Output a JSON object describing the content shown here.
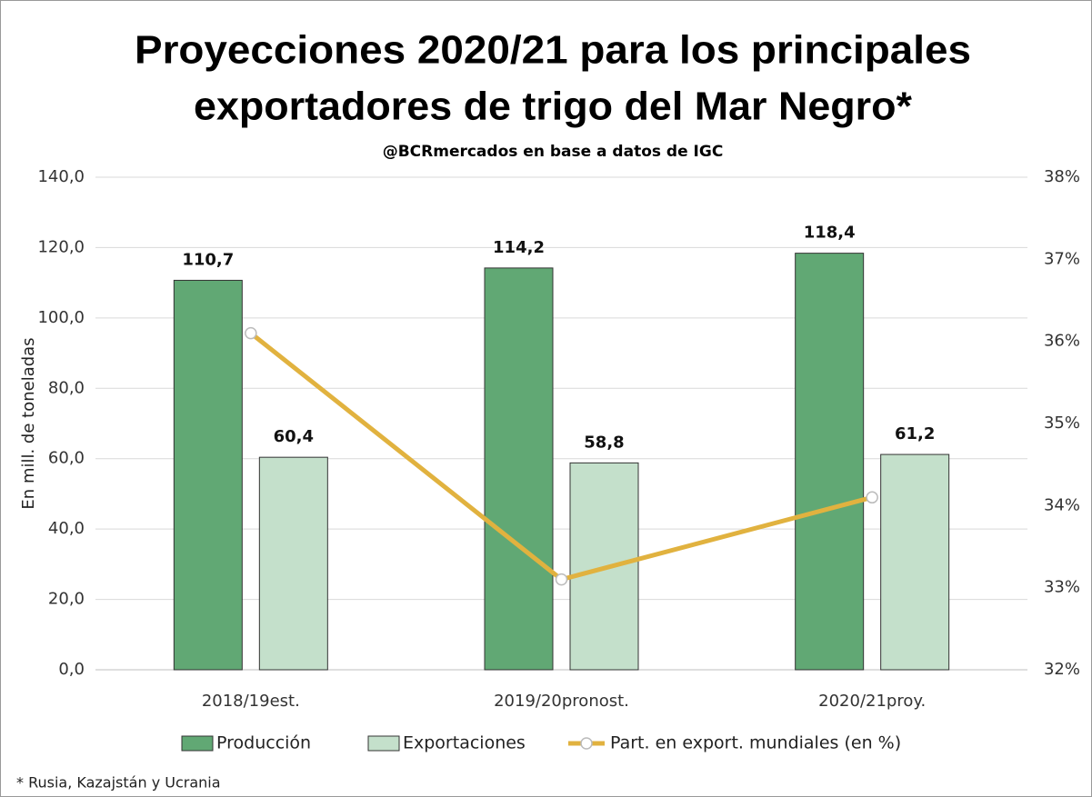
{
  "chart_data": {
    "type": "bar",
    "title": [
      "Proyecciones 2020/21 para los principales",
      "exportadores de trigo del Mar Negro*"
    ],
    "subtitle": "@BCRmercados  en base a datos de IGC",
    "y_label": "En mill. de toneladas",
    "footnote": "* Rusia, Kazajstán y Ucrania",
    "categories": [
      "2018/19est.",
      "2019/20pronost.",
      "2020/21proy."
    ],
    "series": [
      {
        "name": "Producción",
        "type": "bar",
        "color": "#61a874",
        "values": [
          110.7,
          114.2,
          118.4
        ],
        "value_labels": [
          "110,7",
          "114,2",
          "118,4"
        ]
      },
      {
        "name": "Exportaciones",
        "type": "bar",
        "color": "#c4e0cb",
        "values": [
          60.4,
          58.8,
          61.2
        ],
        "value_labels": [
          "60,4",
          "58,8",
          "61,2"
        ]
      },
      {
        "name": "Part. en export. mundiales (en %)",
        "type": "line",
        "axis": "y2",
        "color": "#e1b23f",
        "values": [
          36.1,
          33.1,
          34.1
        ]
      }
    ],
    "ylim": [
      0,
      140
    ],
    "yticks": [
      {
        "value": 0,
        "label": "0,0"
      },
      {
        "value": 20,
        "label": "20,0"
      },
      {
        "value": 40,
        "label": "40,0"
      },
      {
        "value": 60,
        "label": "60,0"
      },
      {
        "value": 80,
        "label": "80,0"
      },
      {
        "value": 100,
        "label": "100,0"
      },
      {
        "value": 120,
        "label": "120,0"
      },
      {
        "value": 140,
        "label": "140,0"
      }
    ],
    "y2lim": [
      32,
      38
    ],
    "y2ticks": [
      {
        "value": 32,
        "label": "32%"
      },
      {
        "value": 33,
        "label": "33%"
      },
      {
        "value": 34,
        "label": "34%"
      },
      {
        "value": 35,
        "label": "35%"
      },
      {
        "value": 36,
        "label": "36%"
      },
      {
        "value": 37,
        "label": "37%"
      },
      {
        "value": 38,
        "label": "38%"
      }
    ],
    "grid": true
  }
}
